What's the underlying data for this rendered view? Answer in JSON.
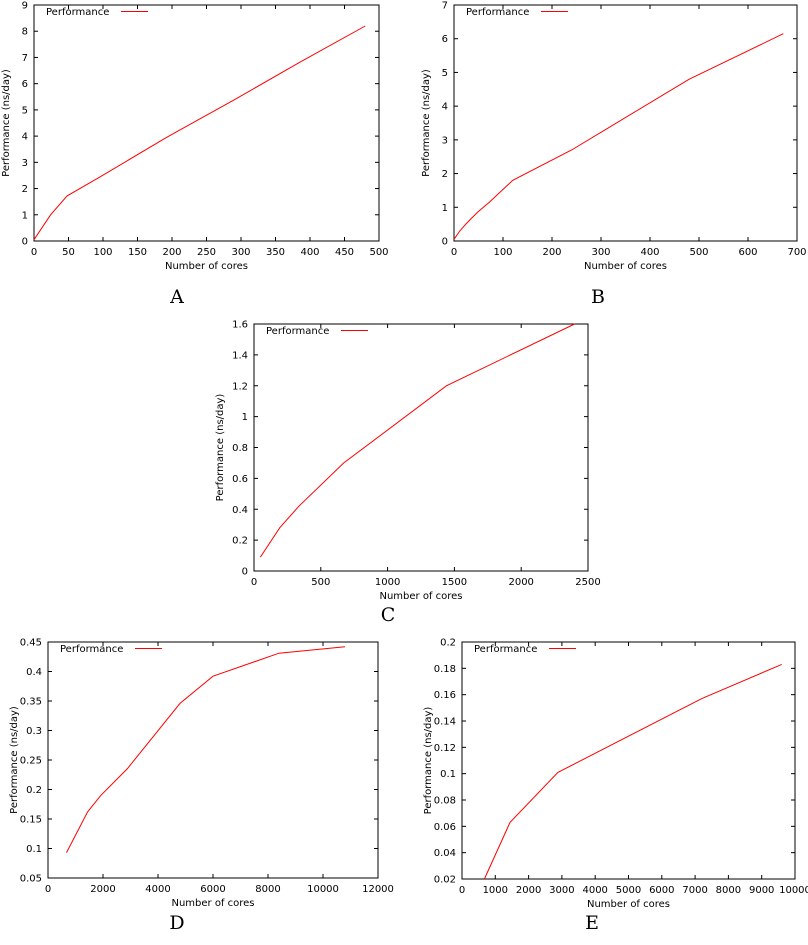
{
  "chart_data": [
    {
      "id": "A",
      "type": "line",
      "caption": "A",
      "xlabel": "Number of cores",
      "ylabel": "Performance (ns/day)",
      "xlim": [
        0,
        500
      ],
      "ylim": [
        0,
        9
      ],
      "xticks": [
        0,
        50,
        100,
        150,
        200,
        250,
        300,
        350,
        400,
        450,
        500
      ],
      "yticks": [
        0,
        1,
        2,
        3,
        4,
        5,
        6,
        7,
        8,
        9
      ],
      "legend_position": "top-left",
      "series": [
        {
          "name": "Performance",
          "color": "#ff0000",
          "x": [
            0,
            24,
            48,
            96,
            192,
            288,
            384,
            480
          ],
          "y": [
            0.05,
            1.0,
            1.72,
            2.45,
            3.95,
            5.35,
            6.8,
            8.2
          ]
        }
      ]
    },
    {
      "id": "B",
      "type": "line",
      "caption": "B",
      "xlabel": "Number of cores",
      "ylabel": "Performance (ns/day)",
      "xlim": [
        0,
        700
      ],
      "ylim": [
        0,
        7
      ],
      "xticks": [
        0,
        100,
        200,
        300,
        400,
        500,
        600,
        700
      ],
      "yticks": [
        0,
        1,
        2,
        3,
        4,
        5,
        6,
        7
      ],
      "legend_position": "top-left",
      "series": [
        {
          "name": "Performance",
          "color": "#ff0000",
          "x": [
            0,
            12,
            24,
            36,
            48,
            60,
            72,
            120,
            240,
            480,
            672
          ],
          "y": [
            0.05,
            0.3,
            0.5,
            0.68,
            0.85,
            1.0,
            1.15,
            1.8,
            2.7,
            4.8,
            6.15
          ]
        }
      ]
    },
    {
      "id": "C",
      "type": "line",
      "caption": "C",
      "xlabel": "Number of cores",
      "ylabel": "Performance (ns/day)",
      "xlim": [
        0,
        2500
      ],
      "ylim": [
        0,
        1.6
      ],
      "xticks": [
        0,
        500,
        1000,
        1500,
        2000,
        2500
      ],
      "yticks": [
        0,
        0.2,
        0.4,
        0.6,
        0.8,
        1,
        1.2,
        1.4,
        1.6
      ],
      "legend_position": "top-left",
      "series": [
        {
          "name": "Performance",
          "color": "#ff0000",
          "x": [
            48,
            192,
            336,
            672,
            1440,
            2400
          ],
          "y": [
            0.09,
            0.28,
            0.42,
            0.7,
            1.2,
            1.6
          ]
        }
      ]
    },
    {
      "id": "D",
      "type": "line",
      "caption": "D",
      "xlabel": "Number of cores",
      "ylabel": "Performance (ns/day)",
      "xlim": [
        0,
        12000
      ],
      "ylim": [
        0.05,
        0.45
      ],
      "xticks": [
        0,
        2000,
        4000,
        6000,
        8000,
        10000,
        12000
      ],
      "yticks": [
        0.05,
        0.1,
        0.15,
        0.2,
        0.25,
        0.3,
        0.35,
        0.4,
        0.45
      ],
      "legend_position": "top-left",
      "series": [
        {
          "name": "Performance",
          "color": "#ff0000",
          "x": [
            672,
            1440,
            1920,
            2880,
            4800,
            6000,
            8400,
            10800
          ],
          "y": [
            0.093,
            0.162,
            0.19,
            0.235,
            0.346,
            0.392,
            0.431,
            0.442
          ]
        }
      ]
    },
    {
      "id": "E",
      "type": "line",
      "caption": "E",
      "xlabel": "Number of cores",
      "ylabel": "Performance (ns/day)",
      "xlim": [
        0,
        10000
      ],
      "ylim": [
        0.02,
        0.2
      ],
      "xticks": [
        0,
        1000,
        2000,
        3000,
        4000,
        5000,
        6000,
        7000,
        8000,
        9000,
        10000
      ],
      "yticks": [
        0.02,
        0.04,
        0.06,
        0.08,
        0.1,
        0.12,
        0.14,
        0.16,
        0.18,
        0.2
      ],
      "legend_position": "top-left",
      "series": [
        {
          "name": "Performance",
          "color": "#ff0000",
          "x": [
            672,
            1440,
            2880,
            7200,
            9600
          ],
          "y": [
            0.02,
            0.063,
            0.101,
            0.157,
            0.183
          ]
        }
      ]
    }
  ]
}
